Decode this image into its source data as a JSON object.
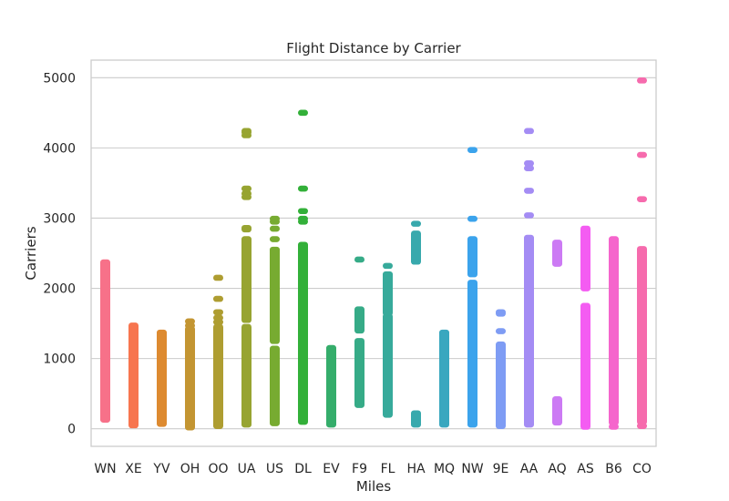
{
  "chart_data": {
    "type": "scatter",
    "title": "Flight Distance by Carrier",
    "xlabel": "Miles",
    "ylabel": "Carriers",
    "ylim": [
      -250,
      5250
    ],
    "yticks": [
      0,
      1000,
      2000,
      3000,
      4000,
      5000
    ],
    "grid": "horizontal",
    "legend": "none",
    "categories": [
      "WN",
      "XE",
      "YV",
      "OH",
      "OO",
      "UA",
      "US",
      "DL",
      "EV",
      "F9",
      "FL",
      "HA",
      "MQ",
      "NW",
      "9E",
      "AA",
      "AQ",
      "AS",
      "B6",
      "CO"
    ],
    "series": [
      {
        "category": "WN",
        "color": "#f77189",
        "ranges": [
          [
            130,
            2370
          ]
        ],
        "points": []
      },
      {
        "category": "XE",
        "color": "#f7754f",
        "ranges": [
          [
            50,
            1470
          ]
        ],
        "points": []
      },
      {
        "category": "YV",
        "color": "#dd8a30",
        "ranges": [
          [
            70,
            1370
          ]
        ],
        "points": []
      },
      {
        "category": "OH",
        "color": "#c39532",
        "ranges": [
          [
            20,
            1420
          ]
        ],
        "points": [
          1530,
          1470
        ]
      },
      {
        "category": "OO",
        "color": "#ae9d31",
        "ranges": [
          [
            40,
            1450
          ]
        ],
        "points": [
          1520,
          1580,
          1660,
          1850,
          2150
        ]
      },
      {
        "category": "UA",
        "color": "#97a431",
        "ranges": [
          [
            60,
            1450
          ],
          [
            1550,
            2700
          ]
        ],
        "points": [
          2840,
          2860,
          3300,
          3350,
          3420,
          4180,
          4220,
          4240
        ]
      },
      {
        "category": "US",
        "color": "#77ab31",
        "ranges": [
          [
            80,
            1140
          ],
          [
            1250,
            2550
          ]
        ],
        "points": [
          2700,
          2850,
          2950,
          2990
        ]
      },
      {
        "category": "DL",
        "color": "#33b039",
        "ranges": [
          [
            100,
            2620
          ]
        ],
        "points": [
          2950,
          2990,
          3100,
          3420,
          4500
        ]
      },
      {
        "category": "EV",
        "color": "#35ad6b",
        "ranges": [
          [
            60,
            1150
          ]
        ],
        "points": []
      },
      {
        "category": "F9",
        "color": "#36ab87",
        "ranges": [
          [
            340,
            1250
          ],
          [
            1400,
            1700
          ]
        ],
        "points": [
          2410
        ]
      },
      {
        "category": "FL",
        "color": "#37aa9b",
        "ranges": [
          [
            200,
            1600
          ],
          [
            1650,
            2200
          ]
        ],
        "points": [
          2320
        ]
      },
      {
        "category": "HA",
        "color": "#38a9ad",
        "ranges": [
          [
            60,
            220
          ],
          [
            2380,
            2780
          ]
        ],
        "points": [
          2920
        ]
      },
      {
        "category": "MQ",
        "color": "#39a7bf",
        "ranges": [
          [
            60,
            1370
          ]
        ],
        "points": []
      },
      {
        "category": "NW",
        "color": "#3ba3ec",
        "ranges": [
          [
            60,
            2080
          ],
          [
            2200,
            2700
          ]
        ],
        "points": [
          2990,
          3970
        ]
      },
      {
        "category": "9E",
        "color": "#7e9cf4",
        "ranges": [
          [
            40,
            1200
          ]
        ],
        "points": [
          1390,
          1640,
          1660
        ]
      },
      {
        "category": "AA",
        "color": "#a48cf4",
        "ranges": [
          [
            60,
            2720
          ]
        ],
        "points": [
          3040,
          3390,
          3710,
          3780,
          4240
        ]
      },
      {
        "category": "AQ",
        "color": "#cc7af4",
        "ranges": [
          [
            90,
            420
          ],
          [
            2350,
            2650
          ]
        ],
        "points": []
      },
      {
        "category": "AS",
        "color": "#f45cf2",
        "ranges": [
          [
            30,
            1750
          ],
          [
            2000,
            2850
          ]
        ],
        "points": []
      },
      {
        "category": "B6",
        "color": "#f565cc",
        "ranges": [
          [
            90,
            2700
          ]
        ],
        "points": [
          30
        ]
      },
      {
        "category": "CO",
        "color": "#f66bad",
        "ranges": [
          [
            100,
            2560
          ]
        ],
        "points": [
          40,
          3270,
          3900,
          4960
        ]
      }
    ]
  }
}
